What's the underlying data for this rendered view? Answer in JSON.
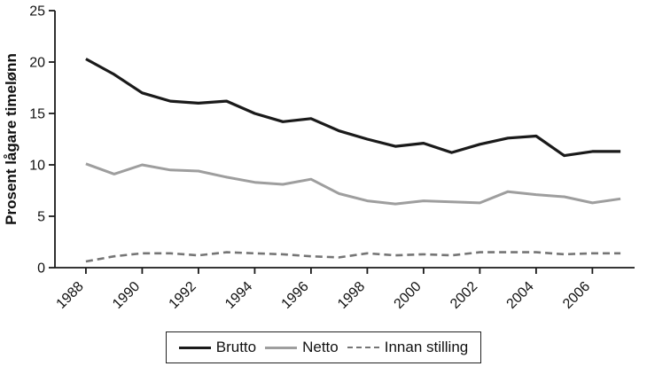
{
  "chart_data": {
    "type": "line",
    "title": "",
    "xlabel": "",
    "ylabel": "Prosent lågare timelønn",
    "ylim": [
      0,
      25
    ],
    "yticks": [
      0,
      5,
      10,
      15,
      20,
      25
    ],
    "xlim": [
      1986.9,
      2007.5
    ],
    "xticks": [
      1988,
      1990,
      1992,
      1994,
      1996,
      1998,
      2000,
      2002,
      2004,
      2006
    ],
    "grid": false,
    "legend_position": "bottom-center-boxed",
    "x": [
      1988,
      1989,
      1990,
      1991,
      1992,
      1993,
      1994,
      1995,
      1996,
      1997,
      1998,
      1999,
      2000,
      2001,
      2002,
      2003,
      2004,
      2005,
      2006,
      2007
    ],
    "series": [
      {
        "name": "Brutto",
        "color": "#1a1a1a",
        "width": 3.2,
        "dash": "",
        "values": [
          20.3,
          18.8,
          17.0,
          16.2,
          16.0,
          16.2,
          15.0,
          14.2,
          14.5,
          13.3,
          12.5,
          11.8,
          12.1,
          11.2,
          12.0,
          12.6,
          12.8,
          10.9,
          11.3,
          11.3
        ]
      },
      {
        "name": "Netto",
        "color": "#9e9e9e",
        "width": 3.0,
        "dash": "",
        "values": [
          10.1,
          9.1,
          10.0,
          9.5,
          9.4,
          8.8,
          8.3,
          8.1,
          8.6,
          7.2,
          6.5,
          6.2,
          6.5,
          6.4,
          6.3,
          7.4,
          7.1,
          6.9,
          6.3,
          6.7
        ]
      },
      {
        "name": "Innan stilling",
        "color": "#757575",
        "width": 2.6,
        "dash": "8 5",
        "values": [
          0.6,
          1.1,
          1.4,
          1.4,
          1.2,
          1.5,
          1.4,
          1.3,
          1.1,
          1.0,
          1.4,
          1.2,
          1.3,
          1.2,
          1.5,
          1.5,
          1.5,
          1.3,
          1.4,
          1.4
        ]
      }
    ]
  }
}
